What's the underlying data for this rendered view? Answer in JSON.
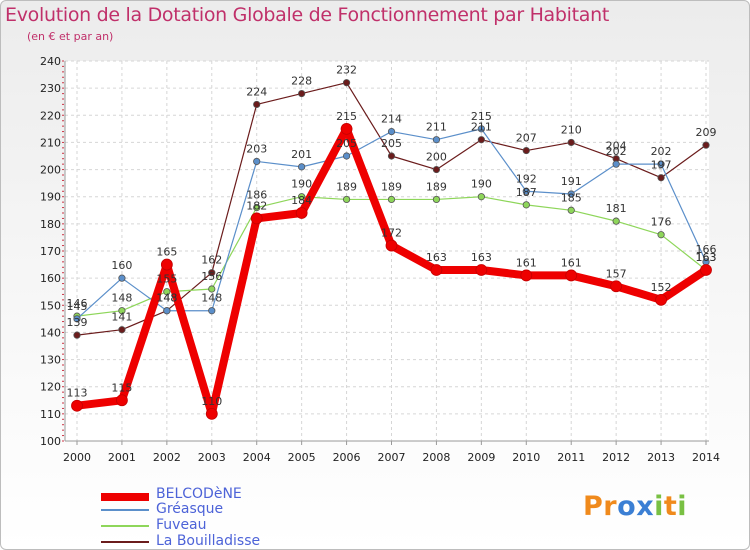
{
  "title": "Evolution de la Dotation Globale de Fonctionnement par Habitant",
  "subtitle": "(en € et par an)",
  "logo": "Proxiti",
  "chart_data": {
    "type": "line",
    "x": [
      "2000",
      "2001",
      "2002",
      "2003",
      "2004",
      "2005",
      "2006",
      "2007",
      "2008",
      "2009",
      "2010",
      "2011",
      "2012",
      "2013",
      "2014"
    ],
    "ylim": [
      100,
      240
    ],
    "yticks": [
      100,
      110,
      120,
      130,
      140,
      150,
      160,
      170,
      180,
      190,
      200,
      210,
      220,
      230,
      240
    ],
    "grid": true,
    "legend_position": "bottom-left",
    "series": [
      {
        "name": "BELCODèNE",
        "color": "#ee0000",
        "values": [
          113,
          115,
          165,
          110,
          182,
          184,
          215,
          172,
          163,
          163,
          161,
          161,
          157,
          152,
          163
        ]
      },
      {
        "name": "Gréasque",
        "color": "#5b8fca",
        "values": [
          145,
          160,
          148,
          148,
          203,
          201,
          205,
          214,
          211,
          215,
          192,
          191,
          202,
          202,
          166
        ]
      },
      {
        "name": "Fuveau",
        "color": "#8ed65a",
        "values": [
          146,
          148,
          155,
          156,
          186,
          190,
          189,
          189,
          189,
          190,
          187,
          185,
          181,
          176,
          163
        ]
      },
      {
        "name": "La Bouilladisse",
        "color": "#6b1c1c",
        "values": [
          139,
          141,
          148,
          162,
          224,
          228,
          232,
          205,
          200,
          211,
          207,
          210,
          204,
          197,
          209
        ]
      }
    ]
  }
}
